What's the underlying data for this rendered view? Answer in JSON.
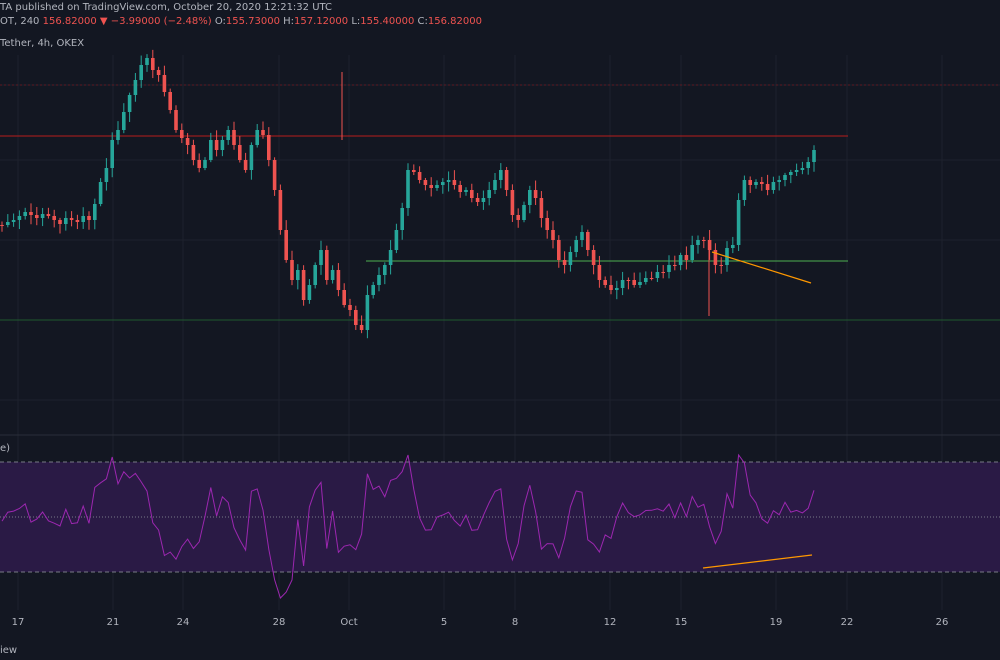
{
  "header": {
    "line1": "TA published on TradingView.com, October 20, 2020 12:21:32 UTC",
    "symbol_prefix": "OT, 240",
    "last": "156.82000",
    "change": "▼ −3.99000 (−2.48%)",
    "o_label": "O:",
    "o": "155.73000",
    "h_label": "H:",
    "h": "157.12000",
    "l_label": "L:",
    "l": "155.40000",
    "c_label": "C:",
    "c": "156.82000",
    "line3": "Tether, 4h, OKEX"
  },
  "rsi_label": "e)",
  "footer_text": "iew",
  "colors": {
    "background": "#131722",
    "up": "#26a69a",
    "down": "#ef5350",
    "rsi_line": "#9c27b0",
    "rsi_band": "#2a1a45",
    "support": "#4caf50",
    "resistance": "#b71c1c",
    "trendline": "#ff9800"
  },
  "chart_data": [
    {
      "type": "candlestick",
      "description_x": "4h candles, dates Sep 16 – Oct 20, 2020",
      "x_ticks": [
        "17",
        "21",
        "24",
        "28",
        "Oct",
        "5",
        "8",
        "12",
        "15",
        "19",
        "22",
        "26"
      ],
      "grid": true,
      "horizontal_levels": [
        {
          "name": "resistance",
          "color": "#b71c1c"
        },
        {
          "name": "support",
          "color": "#4caf50"
        },
        {
          "name": "lower support",
          "color": "#4caf50"
        }
      ],
      "trendline": "descending lows from Oct 16 to Oct 20",
      "close_path": [
        205,
        208,
        210,
        214,
        218,
        215,
        212,
        216,
        214,
        210,
        206,
        212,
        210,
        208,
        214,
        210,
        226,
        248,
        262,
        290,
        300,
        318,
        335,
        350,
        365,
        372,
        360,
        355,
        338,
        320,
        300,
        292,
        285,
        270,
        262,
        270,
        290,
        280,
        290,
        300,
        285,
        270,
        260,
        285,
        300,
        295,
        270,
        240,
        200,
        170,
        150,
        160,
        130,
        145,
        165,
        180,
        150,
        160,
        140,
        125,
        120,
        105,
        100,
        135,
        145,
        155,
        165,
        180,
        200,
        222,
        260,
        258,
        250,
        245,
        242,
        245,
        248,
        250,
        245,
        238,
        240,
        232,
        228,
        232,
        240,
        250,
        260,
        240,
        215,
        210,
        225,
        240,
        232,
        212,
        200,
        190,
        170,
        165,
        178,
        190,
        198,
        180,
        165,
        150,
        145,
        140,
        142,
        150,
        150,
        145,
        148,
        152,
        152,
        158,
        158,
        165,
        165,
        175,
        170,
        185,
        190,
        190,
        180,
        165,
        165,
        182,
        185,
        230,
        250,
        245,
        248,
        246,
        240,
        248,
        250,
        255,
        258,
        260,
        262,
        268,
        280
      ]
    },
    {
      "type": "line",
      "name": "RSI",
      "levels": [
        70,
        50,
        30
      ],
      "trendline": "ascending RSI lows from Oct 16 to Oct 20 (bullish divergence)"
    }
  ]
}
